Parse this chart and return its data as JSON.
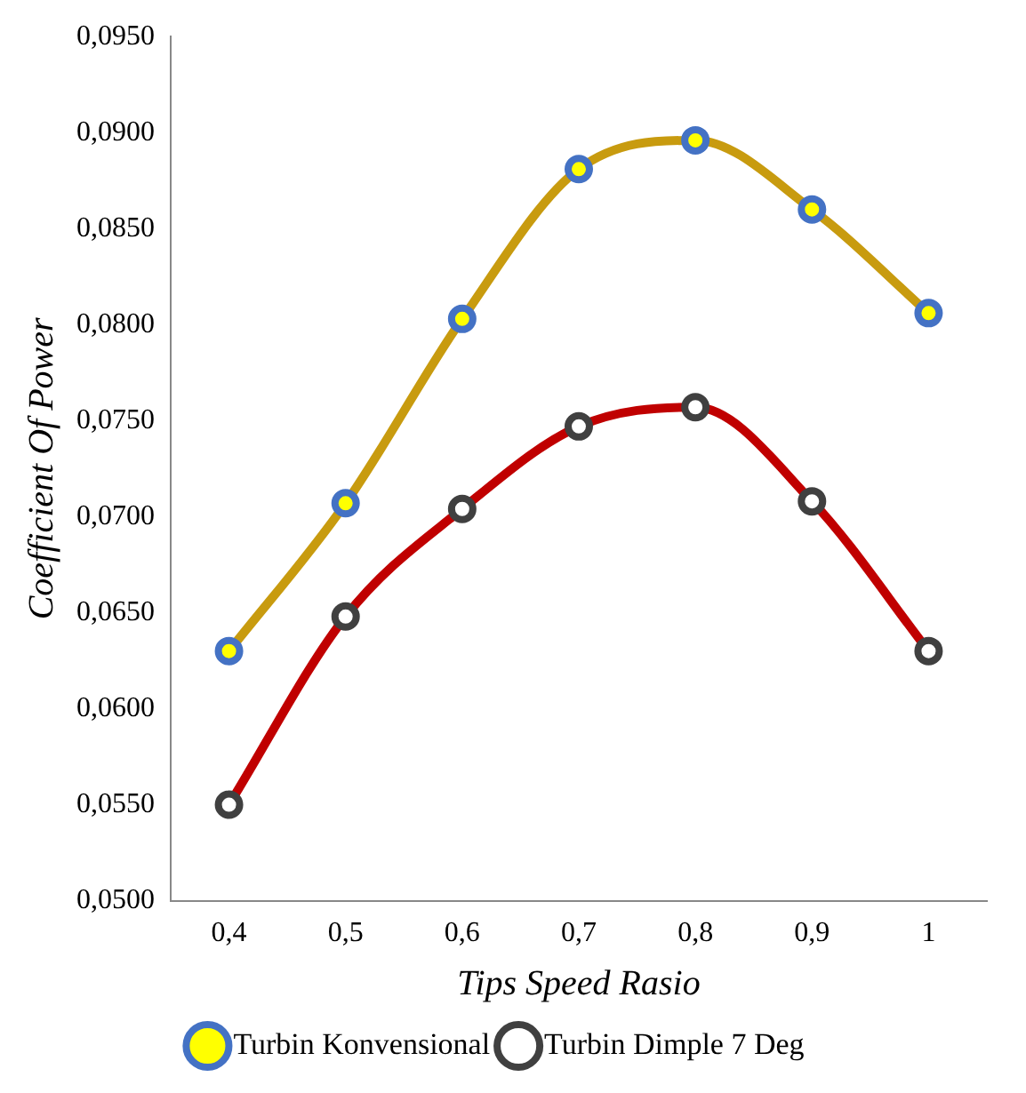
{
  "chart_data": {
    "type": "line",
    "xlabel": "Tips Speed Rasio",
    "ylabel": "Coefficient Of Power",
    "categories": [
      "0,4",
      "0,5",
      "0,6",
      "0,7",
      "0,8",
      "0,9",
      "1"
    ],
    "series": [
      {
        "name": "Turbin Konvensional",
        "color": "#c89b0f",
        "values": [
          0.063,
          0.0707,
          0.0803,
          0.0881,
          0.0896,
          0.086,
          0.0806
        ]
      },
      {
        "name": "Turbin Dimple 7 Deg",
        "color": "#c00000",
        "values": [
          0.055,
          0.0648,
          0.0704,
          0.0747,
          0.0757,
          0.0708,
          0.063
        ]
      }
    ],
    "ylim": [
      0.05,
      0.095
    ],
    "yticks": [
      {
        "value": 0.05,
        "label": "0,0500"
      },
      {
        "value": 0.055,
        "label": "0,0550"
      },
      {
        "value": 0.06,
        "label": "0,0600"
      },
      {
        "value": 0.065,
        "label": "0,0650"
      },
      {
        "value": 0.07,
        "label": "0,0700"
      },
      {
        "value": 0.075,
        "label": "0,0750"
      },
      {
        "value": 0.08,
        "label": "0,0800"
      },
      {
        "value": 0.085,
        "label": "0,0850"
      },
      {
        "value": 0.09,
        "label": "0,0900"
      },
      {
        "value": 0.095,
        "label": "0,0950"
      }
    ],
    "grid": false,
    "legend": "bottom",
    "marker": "circle",
    "line_style": "solid"
  }
}
